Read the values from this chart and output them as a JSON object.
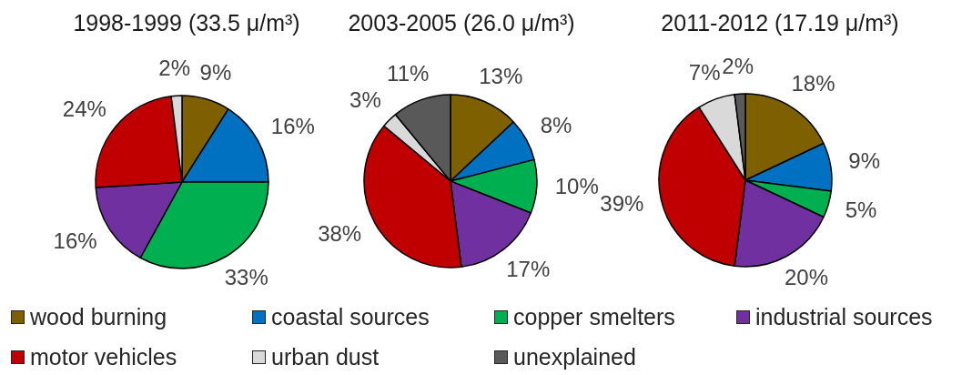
{
  "chart_data": {
    "type": "pie",
    "categories": [
      "wood burning",
      "coastal sources",
      "copper smelters",
      "industrial sources",
      "motor vehicles",
      "urban dust",
      "unexplained"
    ],
    "colors": [
      "#7f6000",
      "#0070c0",
      "#00b050",
      "#7030a0",
      "#c00000",
      "#d9d9d9",
      "#595959"
    ],
    "legend": "bottom",
    "series": [
      {
        "name": "1998-1999 (33.5 μ/m³)",
        "values": [
          9,
          16,
          33,
          16,
          24,
          2,
          null
        ],
        "value_labels": [
          "9%",
          "16%",
          "33%",
          "16%",
          "24%",
          "2%",
          null
        ]
      },
      {
        "name": "2003-2005 (26.0 μ/m³)",
        "values": [
          13,
          8,
          10,
          17,
          38,
          3,
          11
        ],
        "value_labels": [
          "13%",
          "8%",
          "10%",
          "17%",
          "38%",
          "3%",
          "11%"
        ]
      },
      {
        "name": "2011-2012 (17.19 μ/m³)",
        "values": [
          18,
          9,
          5,
          20,
          39,
          7,
          2
        ],
        "value_labels": [
          "18%",
          "9%",
          "5%",
          "20%",
          "39%",
          "7%",
          "2%"
        ]
      }
    ]
  }
}
